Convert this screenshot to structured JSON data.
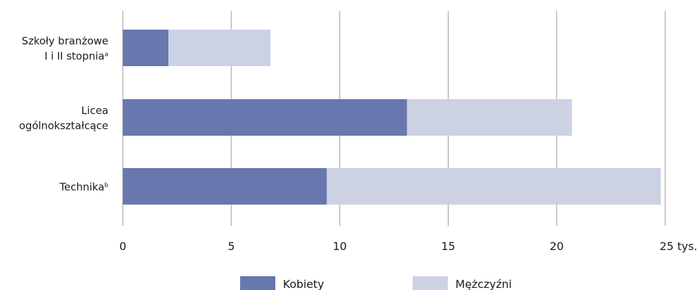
{
  "chart_data": {
    "type": "bar",
    "orientation": "horizontal",
    "stacked": true,
    "categories": [
      [
        "Szkoły branżowe",
        "I i II stopnia",
        "a"
      ],
      [
        "Licea",
        "ogólnokształcące",
        ""
      ],
      [
        "Technika",
        "",
        "b"
      ]
    ],
    "series": [
      {
        "name": "Kobiety",
        "color": "#6877ad",
        "values": [
          2.1,
          13.1,
          9.4
        ]
      },
      {
        "name": "Mężczyźni",
        "color": "#ccd1e4",
        "values": [
          4.7,
          7.6,
          15.4
        ]
      }
    ],
    "xlim": [
      0,
      25
    ],
    "x_ticks": [
      "0",
      "5",
      "10",
      "15",
      "20",
      "25 tys."
    ],
    "x_tick_values": [
      0,
      5,
      10,
      15,
      20,
      25
    ],
    "grid": true,
    "gridline_color": "#9a9a9a",
    "legend_position": "bottom",
    "title": "",
    "xlabel": "",
    "ylabel": ""
  }
}
